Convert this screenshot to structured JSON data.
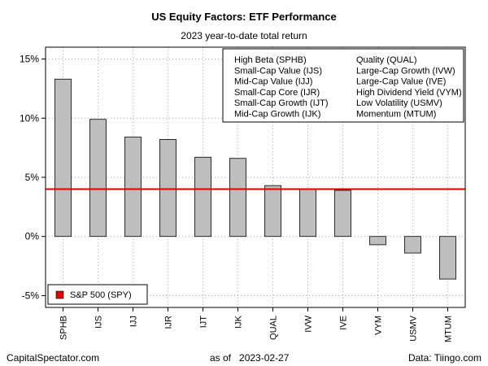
{
  "chart_data": {
    "type": "bar",
    "title": "US Equity Factors: ETF Performance",
    "subtitle": "2023 year-to-date total return",
    "categories": [
      "SPHB",
      "IJS",
      "IJJ",
      "IJR",
      "IJT",
      "IJK",
      "QUAL",
      "IVW",
      "IVE",
      "VYM",
      "USMV",
      "MTUM"
    ],
    "values": [
      13.3,
      9.9,
      8.4,
      8.2,
      6.7,
      6.6,
      4.3,
      4.0,
      3.9,
      -0.7,
      -1.4,
      -3.6
    ],
    "ylim": [
      -6,
      16
    ],
    "yticks": [
      -5,
      0,
      5,
      10,
      15
    ],
    "ytick_labels": [
      "-5%",
      "0%",
      "5%",
      "10%",
      "15%"
    ],
    "grid": true,
    "reference_line": {
      "label": "S&P 500 (SPY)",
      "value": 4.0,
      "color": "#e00000"
    },
    "legend_position": "bottom-left",
    "bar_color": "#bebebe",
    "info_box": {
      "position": "top-right",
      "col1": [
        "High Beta (SPHB)",
        "Small-Cap Value (IJS)",
        "Mid-Cap Value (IJJ)",
        "Small-Cap Core (IJR)",
        "Small-Cap Growth (IJT)",
        "Mid-Cap Growth (IJK)"
      ],
      "col2": [
        "Quality (QUAL)",
        "Large-Cap Growth (IVW)",
        "Large-Cap Value (IVE)",
        "High Dividend Yield (VYM)",
        "Low Volatility (USMV)",
        "Momentum (MTUM)"
      ]
    }
  },
  "footer": {
    "left": "CapitalSpectator.com",
    "center": "as of   2023-02-27",
    "right": "Data: Tiingo.com"
  }
}
